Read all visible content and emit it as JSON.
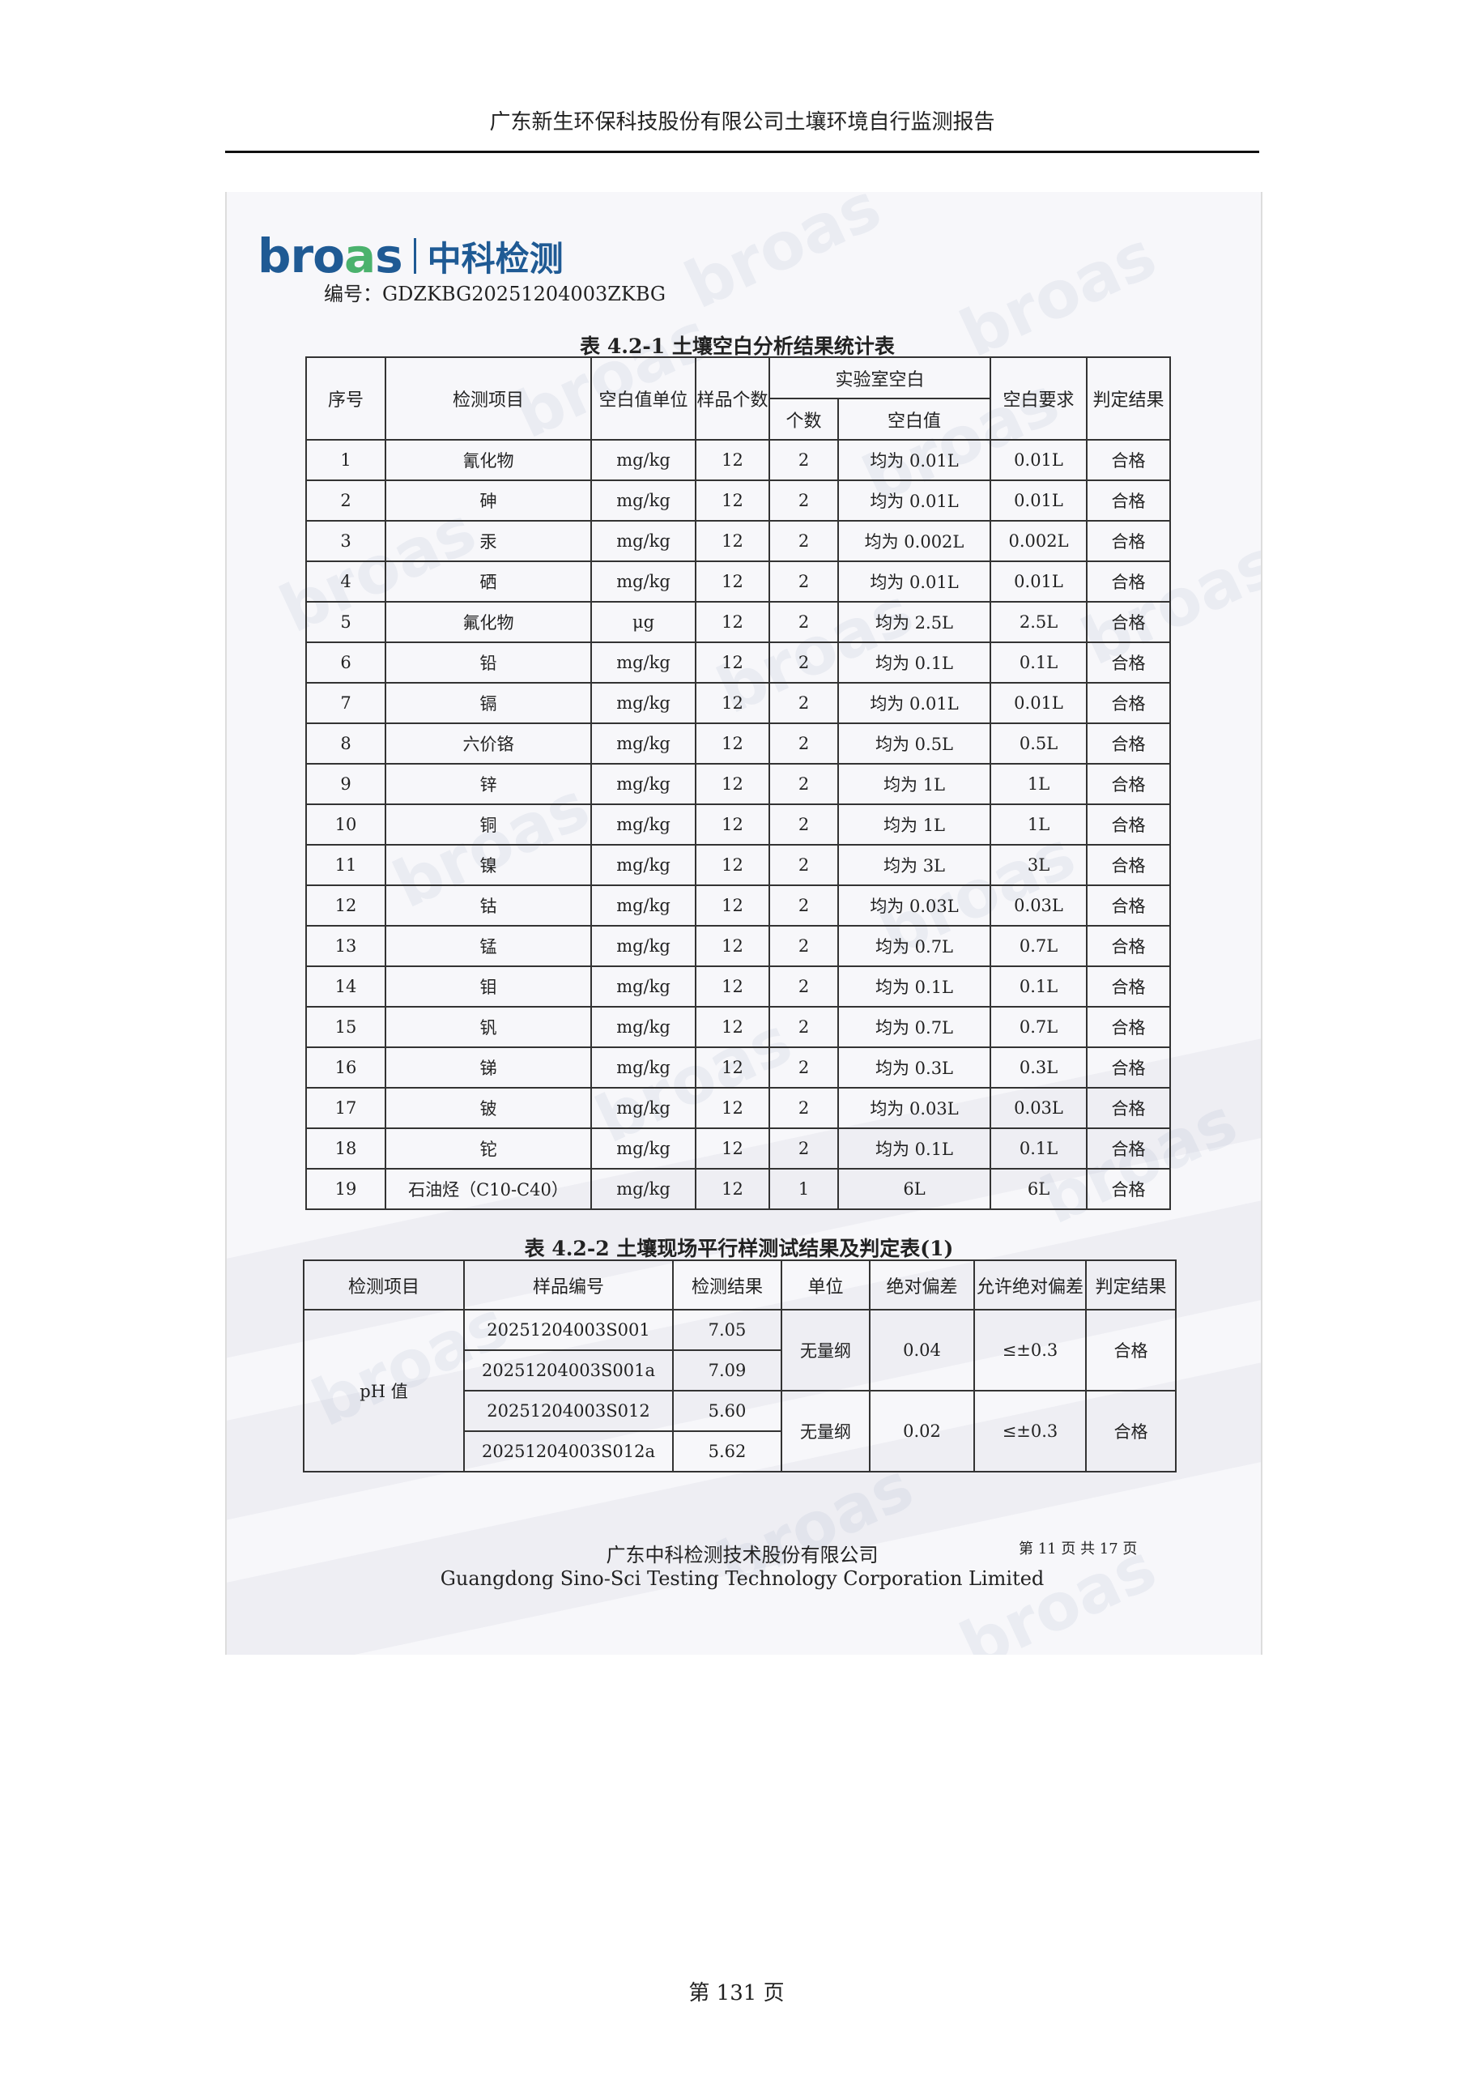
{
  "header": {
    "title": "广东新生环保科技股份有限公司土壤环境自行监测报告"
  },
  "logo": {
    "en": "broas",
    "cn": "中科检测"
  },
  "report_no": "编号：GDZKBG20251204003ZKBG",
  "table1": {
    "title": "表 4.2-1 土壤空白分析结果统计表",
    "headers": {
      "seq": "序号",
      "item": "检测项目",
      "unit": "空白值单位",
      "sample_count": "样品个数",
      "lab_blank": "实验室空白",
      "count": "个数",
      "blank_value": "空白值",
      "requirement": "空白要求",
      "result": "判定结果"
    },
    "rows": [
      [
        "1",
        "氰化物",
        "mg/kg",
        "12",
        "2",
        "均为 0.01L",
        "0.01L",
        "合格"
      ],
      [
        "2",
        "砷",
        "mg/kg",
        "12",
        "2",
        "均为 0.01L",
        "0.01L",
        "合格"
      ],
      [
        "3",
        "汞",
        "mg/kg",
        "12",
        "2",
        "均为 0.002L",
        "0.002L",
        "合格"
      ],
      [
        "4",
        "硒",
        "mg/kg",
        "12",
        "2",
        "均为 0.01L",
        "0.01L",
        "合格"
      ],
      [
        "5",
        "氟化物",
        "μg",
        "12",
        "2",
        "均为 2.5L",
        "2.5L",
        "合格"
      ],
      [
        "6",
        "铅",
        "mg/kg",
        "12",
        "2",
        "均为 0.1L",
        "0.1L",
        "合格"
      ],
      [
        "7",
        "镉",
        "mg/kg",
        "12",
        "2",
        "均为 0.01L",
        "0.01L",
        "合格"
      ],
      [
        "8",
        "六价铬",
        "mg/kg",
        "12",
        "2",
        "均为 0.5L",
        "0.5L",
        "合格"
      ],
      [
        "9",
        "锌",
        "mg/kg",
        "12",
        "2",
        "均为 1L",
        "1L",
        "合格"
      ],
      [
        "10",
        "铜",
        "mg/kg",
        "12",
        "2",
        "均为 1L",
        "1L",
        "合格"
      ],
      [
        "11",
        "镍",
        "mg/kg",
        "12",
        "2",
        "均为 3L",
        "3L",
        "合格"
      ],
      [
        "12",
        "钴",
        "mg/kg",
        "12",
        "2",
        "均为 0.03L",
        "0.03L",
        "合格"
      ],
      [
        "13",
        "锰",
        "mg/kg",
        "12",
        "2",
        "均为 0.7L",
        "0.7L",
        "合格"
      ],
      [
        "14",
        "钼",
        "mg/kg",
        "12",
        "2",
        "均为 0.1L",
        "0.1L",
        "合格"
      ],
      [
        "15",
        "钒",
        "mg/kg",
        "12",
        "2",
        "均为 0.7L",
        "0.7L",
        "合格"
      ],
      [
        "16",
        "锑",
        "mg/kg",
        "12",
        "2",
        "均为 0.3L",
        "0.3L",
        "合格"
      ],
      [
        "17",
        "铍",
        "mg/kg",
        "12",
        "2",
        "均为 0.03L",
        "0.03L",
        "合格"
      ],
      [
        "18",
        "铊",
        "mg/kg",
        "12",
        "2",
        "均为 0.1L",
        "0.1L",
        "合格"
      ],
      [
        "19",
        "石油烃（C10-C40）",
        "mg/kg",
        "12",
        "1",
        "6L",
        "6L",
        "合格"
      ]
    ]
  },
  "table2": {
    "title": "表 4.2-2 土壤现场平行样测试结果及判定表(1)",
    "headers": {
      "item": "检测项目",
      "sample_id": "样品编号",
      "result": "检测结果",
      "unit": "单位",
      "abs_dev": "绝对偏差",
      "allowed": "允许绝对偏差",
      "judge": "判定结果"
    },
    "item": "pH 值",
    "groups": [
      {
        "samples": [
          [
            "20251204003S001",
            "7.05"
          ],
          [
            "20251204003S001a",
            "7.09"
          ]
        ],
        "unit": "无量纲",
        "abs_dev": "0.04",
        "allowed": "≤±0.3",
        "judge": "合格"
      },
      {
        "samples": [
          [
            "20251204003S012",
            "5.60"
          ],
          [
            "20251204003S012a",
            "5.62"
          ]
        ],
        "unit": "无量纲",
        "abs_dev": "0.02",
        "allowed": "≤±0.3",
        "judge": "合格"
      }
    ]
  },
  "footer": {
    "company_cn": "广东中科检测技术股份有限公司",
    "company_en": "Guangdong Sino-Sci Testing Technology Corporation Limited",
    "inner_page": "第 11 页 共 17 页"
  },
  "page_number": "第 131 页"
}
